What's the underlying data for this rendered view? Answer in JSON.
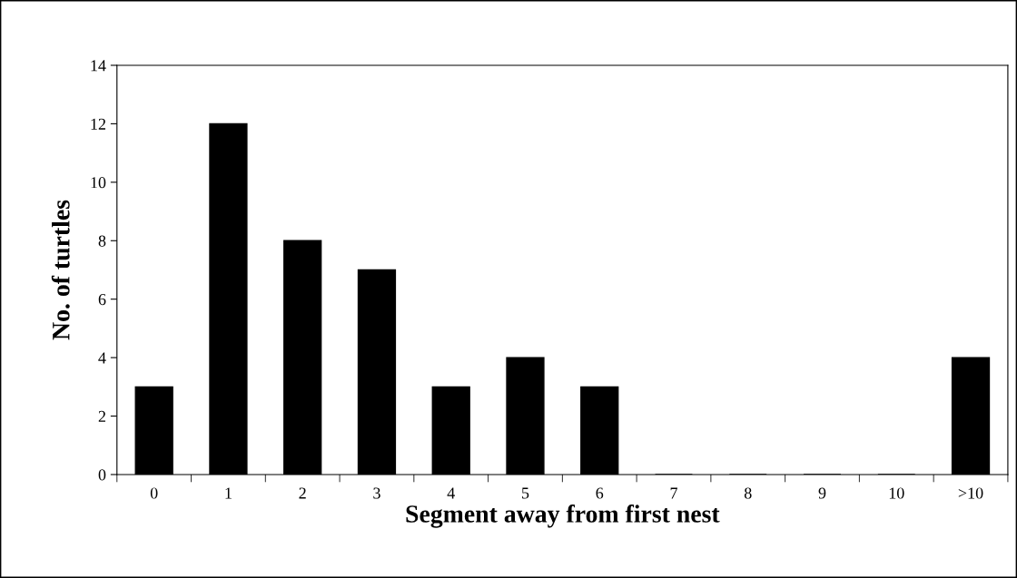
{
  "chart_data": {
    "type": "bar",
    "xlabel": "Segment away from first nest",
    "ylabel": "No. of turtles",
    "categories": [
      "0",
      "1",
      "2",
      "3",
      "4",
      "5",
      "6",
      "7",
      "8",
      "9",
      "10",
      ">10"
    ],
    "values": [
      3,
      12,
      8,
      7,
      3,
      4,
      3,
      0,
      0,
      0,
      0,
      4
    ],
    "color": "#000000",
    "ylim": [
      0,
      14
    ],
    "yticks": [
      0,
      2,
      4,
      6,
      8,
      10,
      12,
      14
    ],
    "grid": false,
    "legend": false
  }
}
